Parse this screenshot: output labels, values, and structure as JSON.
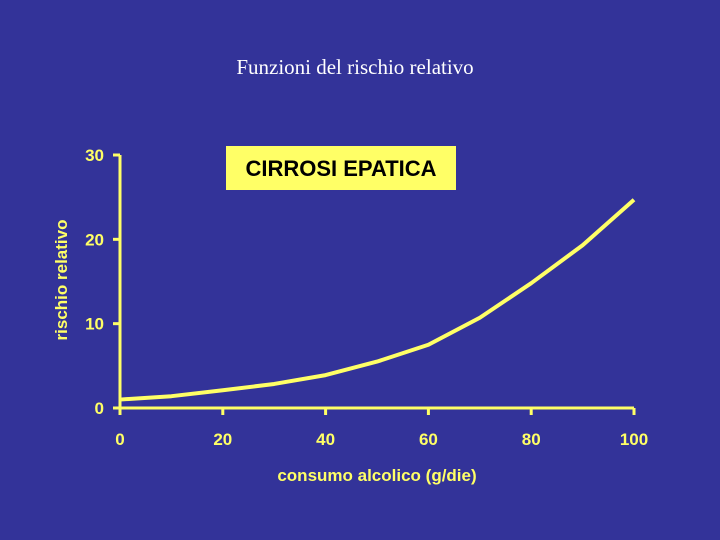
{
  "chart_data": {
    "type": "line",
    "title": "Funzioni del rischio relativo",
    "annotation": "CIRROSI EPATICA",
    "x_label": "consumo alcolico (g/die)",
    "y_label": "rischio relativo",
    "x": [
      0,
      10,
      20,
      30,
      40,
      50,
      60,
      70,
      80,
      90,
      100
    ],
    "series": [
      {
        "name": "CIRROSI EPATICA",
        "color": "#ffff66",
        "values": [
          1,
          1.4,
          2.1,
          2.85,
          3.9,
          5.5,
          7.5,
          10.7,
          14.8,
          19.3,
          24.7
        ]
      }
    ],
    "xlim": [
      0,
      100
    ],
    "xticks": [
      0,
      20,
      40,
      60,
      80,
      100
    ],
    "ylim": [
      0,
      30
    ],
    "yticks": [
      0,
      10,
      20,
      30
    ],
    "grid": false
  }
}
